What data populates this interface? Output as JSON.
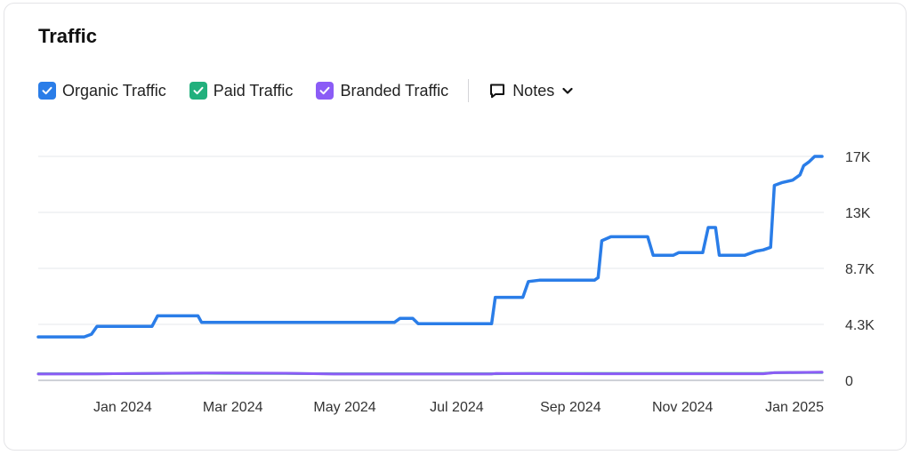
{
  "header": {
    "title": "Traffic"
  },
  "legend": {
    "items": [
      {
        "label": "Organic Traffic",
        "color": "#2a7de8",
        "checked": true
      },
      {
        "label": "Paid Traffic",
        "color": "#22b07d",
        "checked": true
      },
      {
        "label": "Branded Traffic",
        "color": "#8b5cf6",
        "checked": true
      }
    ],
    "notes_label": "Notes"
  },
  "chart_data": {
    "type": "line",
    "title": "Traffic",
    "x_tick_labels": [
      "Jan 2024",
      "Mar 2024",
      "May 2024",
      "Jul 2024",
      "Sep 2024",
      "Nov 2024",
      "Jan 2025"
    ],
    "y_tick_labels": [
      "0",
      "4.3K",
      "8.7K",
      "13K",
      "17K"
    ],
    "ylim": [
      0,
      17000
    ],
    "grid": true,
    "series": [
      {
        "name": "Organic Traffic",
        "color": "#2a7de8",
        "points": [
          [
            "2023-12-01",
            3300
          ],
          [
            "2023-12-26",
            3300
          ],
          [
            "2023-12-30",
            3500
          ],
          [
            "2024-01-02",
            4100
          ],
          [
            "2024-02-01",
            4100
          ],
          [
            "2024-02-04",
            4900
          ],
          [
            "2024-02-26",
            4900
          ],
          [
            "2024-02-28",
            4400
          ],
          [
            "2024-06-12",
            4400
          ],
          [
            "2024-06-15",
            4700
          ],
          [
            "2024-06-22",
            4700
          ],
          [
            "2024-06-25",
            4300
          ],
          [
            "2024-08-04",
            4300
          ],
          [
            "2024-08-06",
            6300
          ],
          [
            "2024-08-21",
            6300
          ],
          [
            "2024-08-24",
            7500
          ],
          [
            "2024-08-30",
            7600
          ],
          [
            "2024-09-29",
            7600
          ],
          [
            "2024-10-01",
            7800
          ],
          [
            "2024-10-03",
            10600
          ],
          [
            "2024-10-08",
            10900
          ],
          [
            "2024-10-28",
            10900
          ],
          [
            "2024-10-31",
            9500
          ],
          [
            "2024-11-11",
            9500
          ],
          [
            "2024-11-14",
            9700
          ],
          [
            "2024-11-27",
            9700
          ],
          [
            "2024-11-30",
            11600
          ],
          [
            "2024-12-04",
            11600
          ],
          [
            "2024-12-06",
            9500
          ],
          [
            "2024-12-20",
            9500
          ],
          [
            "2024-12-26",
            9800
          ],
          [
            "2024-12-30",
            9900
          ],
          [
            "2025-01-03",
            10100
          ],
          [
            "2025-01-05",
            14800
          ],
          [
            "2025-01-09",
            15000
          ],
          [
            "2025-01-15",
            15200
          ],
          [
            "2025-01-19",
            15600
          ],
          [
            "2025-01-21",
            16300
          ],
          [
            "2025-01-24",
            16600
          ],
          [
            "2025-01-27",
            17000
          ],
          [
            "2025-01-31",
            17000
          ]
        ]
      },
      {
        "name": "Paid Traffic",
        "color": "#22b07d",
        "points": [
          [
            "2023-12-01",
            500
          ],
          [
            "2024-01-02",
            500
          ],
          [
            "2024-03-01",
            540
          ],
          [
            "2024-04-14",
            520
          ],
          [
            "2024-05-10",
            500
          ],
          [
            "2024-08-04",
            500
          ],
          [
            "2024-08-25",
            520
          ],
          [
            "2024-10-05",
            520
          ],
          [
            "2024-12-30",
            520
          ],
          [
            "2025-01-05",
            580
          ],
          [
            "2025-01-31",
            600
          ]
        ]
      },
      {
        "name": "Branded Traffic",
        "color": "#8b5cf6",
        "points": [
          [
            "2023-12-01",
            480
          ],
          [
            "2024-01-02",
            490
          ],
          [
            "2024-02-28",
            560
          ],
          [
            "2024-04-14",
            540
          ],
          [
            "2024-05-10",
            480
          ],
          [
            "2024-08-04",
            480
          ],
          [
            "2024-08-06",
            520
          ],
          [
            "2024-10-05",
            500
          ],
          [
            "2024-12-30",
            500
          ],
          [
            "2025-01-05",
            580
          ],
          [
            "2025-01-31",
            620
          ]
        ]
      }
    ]
  }
}
